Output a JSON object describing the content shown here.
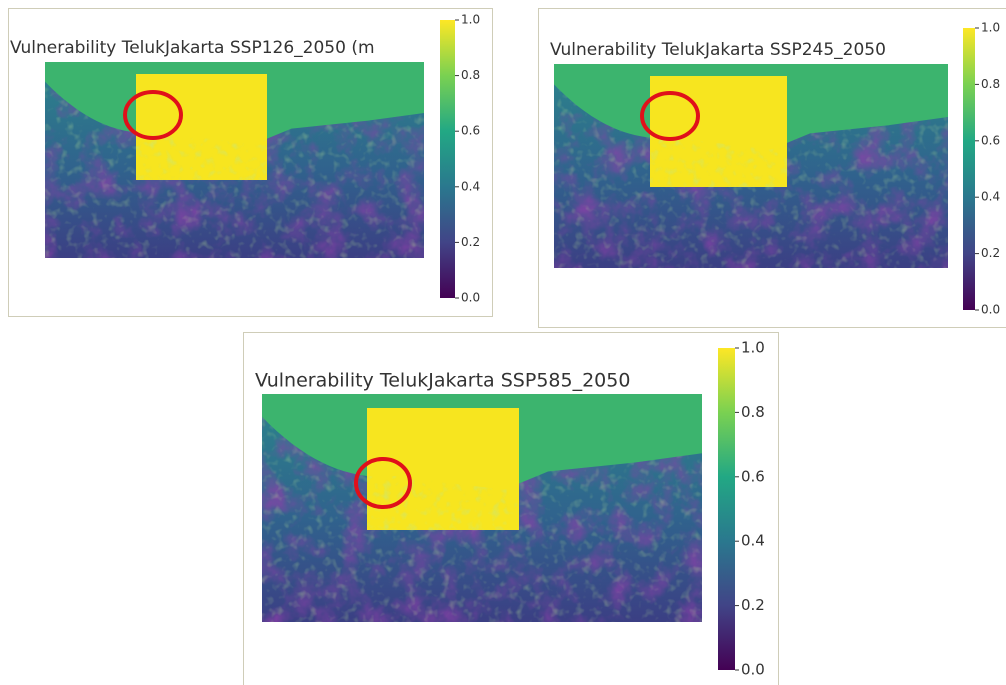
{
  "panels": [
    {
      "title": "Vulnerability TelukJakarta SSP126_2050 (m",
      "colorbar": {
        "ticks": [
          {
            "value": 0,
            "label": "0.0"
          },
          {
            "value": 0.2,
            "label": "0.2"
          },
          {
            "value": 0.4,
            "label": "0.4"
          },
          {
            "value": 0.6,
            "label": "0.6"
          },
          {
            "value": 0.8,
            "label": "0.8"
          },
          {
            "value": 1,
            "label": "1.0"
          }
        ]
      }
    },
    {
      "title": "Vulnerability TelukJakarta SSP245_2050",
      "colorbar": {
        "ticks": [
          {
            "value": 0,
            "label": "0.0"
          },
          {
            "value": 0.2,
            "label": "0.2"
          },
          {
            "value": 0.4,
            "label": "0.4"
          },
          {
            "value": 0.6,
            "label": "0.6"
          },
          {
            "value": 0.8,
            "label": "0.8"
          },
          {
            "value": 1,
            "label": "1.0"
          }
        ]
      }
    },
    {
      "title": "Vulnerability TelukJakarta SSP585_2050",
      "colorbar": {
        "ticks": [
          {
            "value": 0,
            "label": "0.0"
          },
          {
            "value": 0.2,
            "label": "0.2"
          },
          {
            "value": 0.4,
            "label": "0.4"
          },
          {
            "value": 0.6,
            "label": "0.6"
          },
          {
            "value": 0.8,
            "label": "0.8"
          },
          {
            "value": 1,
            "label": "1.0"
          }
        ]
      }
    }
  ]
}
